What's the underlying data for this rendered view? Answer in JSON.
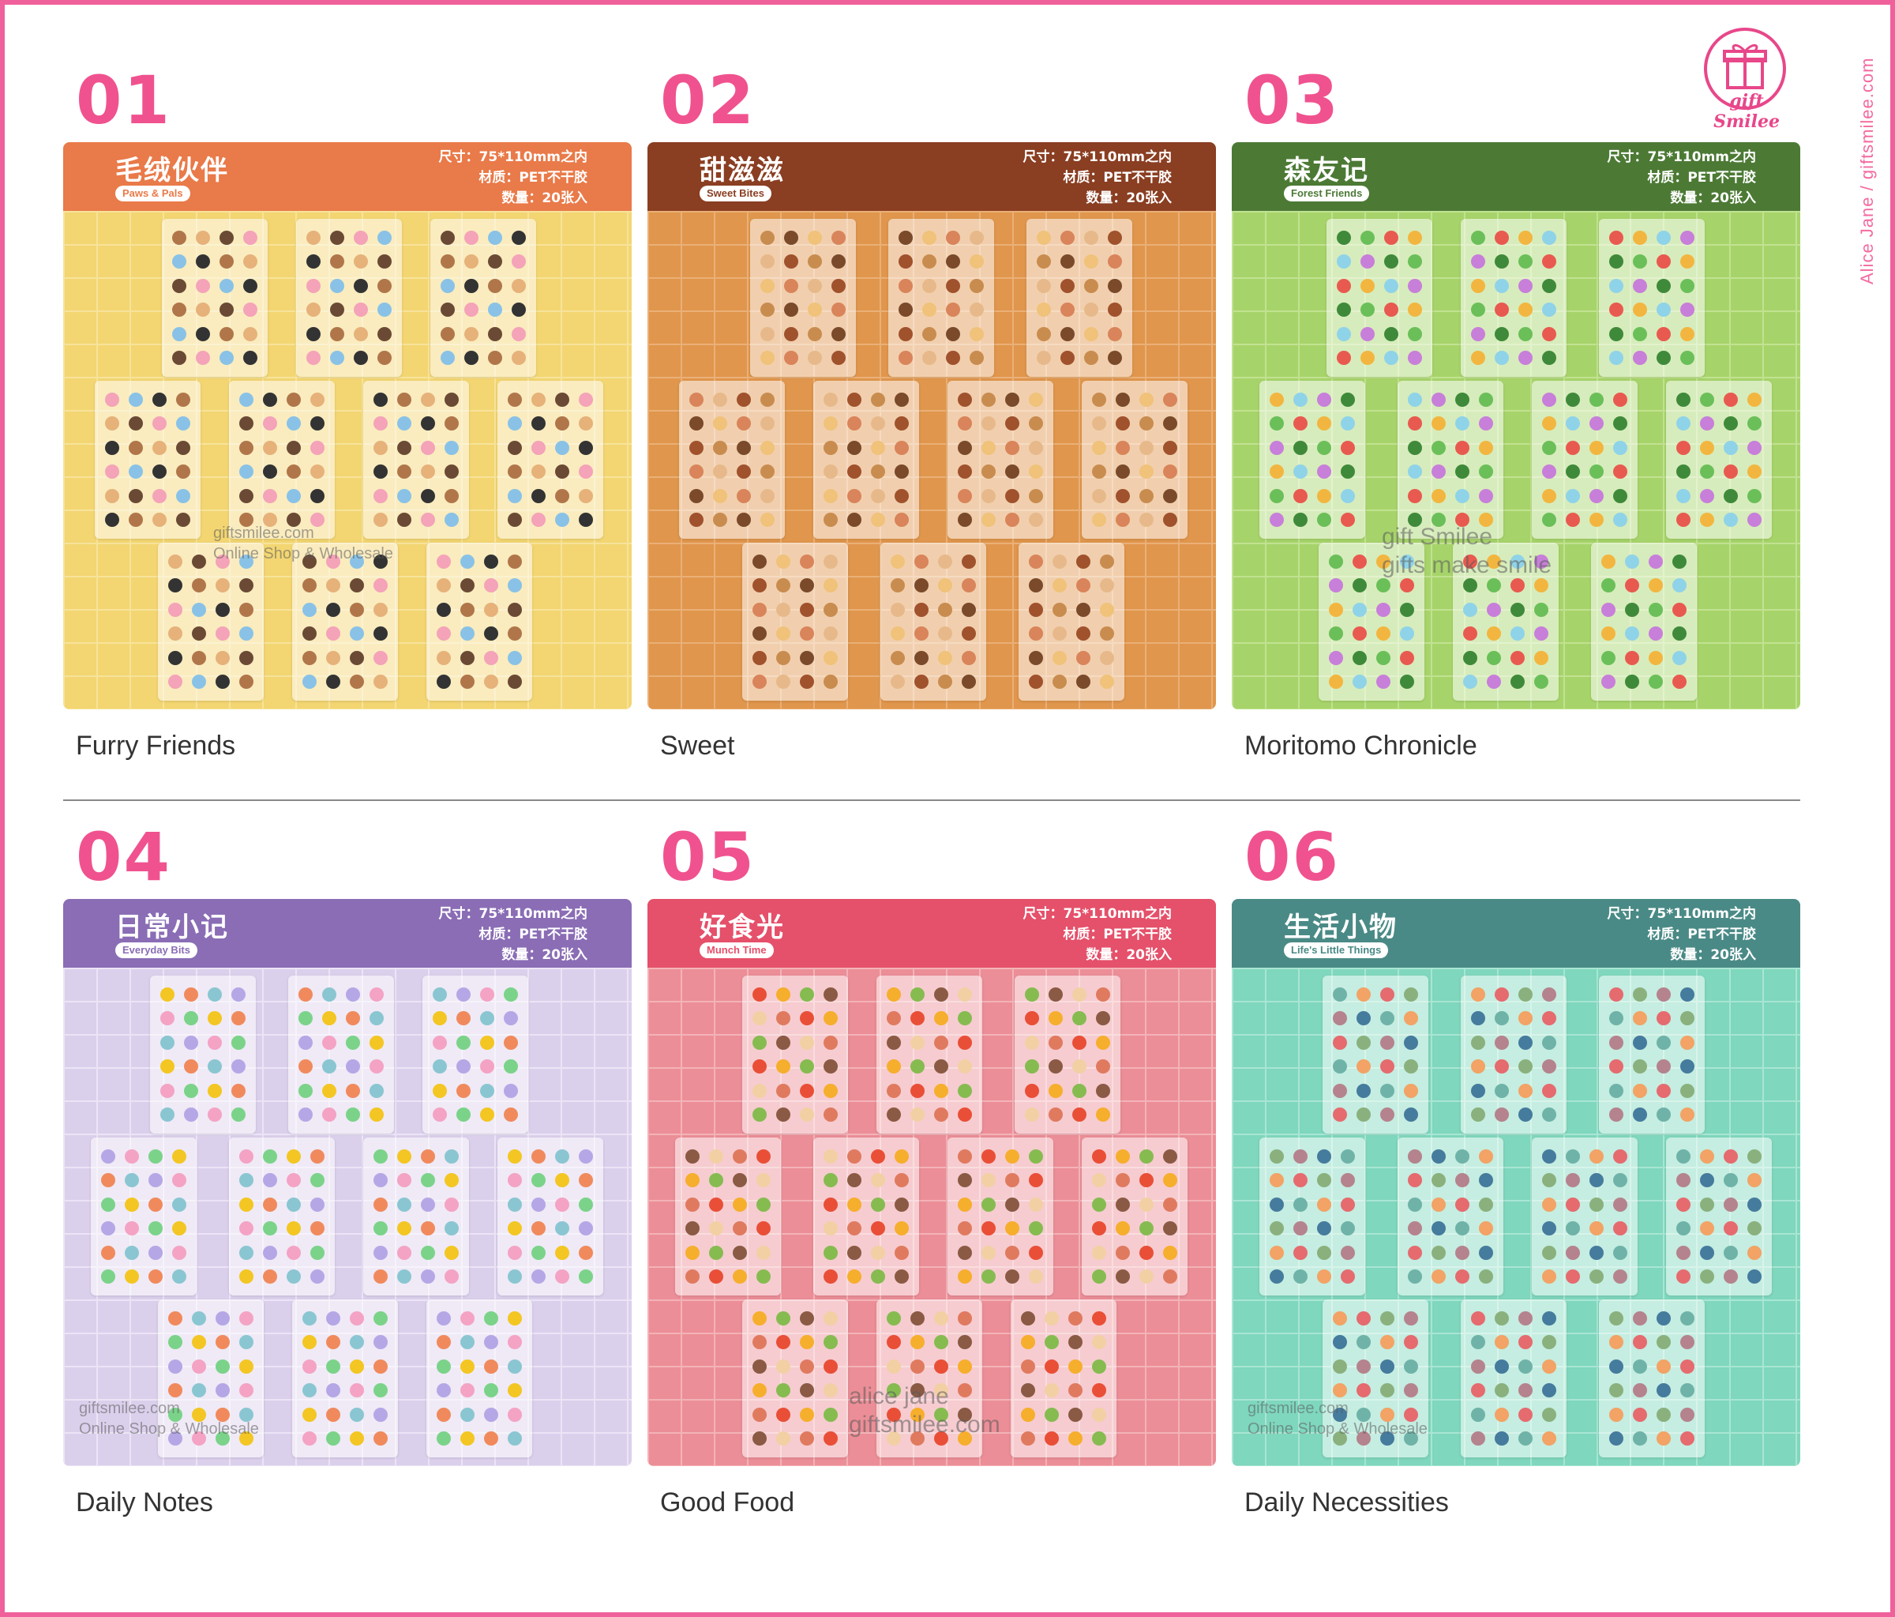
{
  "brand": {
    "side_text": "Alice Jane / giftsmilee.com",
    "logo_text": "gift Smilee",
    "logo_color": "#e8478a",
    "frame_color": "#f0609a"
  },
  "cards": [
    {
      "num": "01",
      "cn_title": "毛绒伙伴",
      "en_tag": "Paws & Pals",
      "size": "尺寸：75*110mm之内",
      "material": "材质：PET不干胶",
      "quantity": "数量：20张入",
      "caption": "Furry Friends",
      "banner_color": "#e97a49",
      "bg_color": "#f3d672",
      "grid_color": "#f7e39a",
      "watermark_line1": "giftsmilee.com",
      "watermark_line2": "Online Shop & Wholesale"
    },
    {
      "num": "02",
      "cn_title": "甜滋滋",
      "en_tag": "Sweet Bites",
      "size": "尺寸：75*110mm之内",
      "material": "材质：PET不干胶",
      "quantity": "数量：20张入",
      "caption": "Sweet",
      "banner_color": "#8a3e22",
      "bg_color": "#e0964c",
      "grid_color": "#eab077",
      "watermark_line1": "",
      "watermark_line2": ""
    },
    {
      "num": "03",
      "cn_title": "森友记",
      "en_tag": "Forest Friends",
      "size": "尺寸：75*110mm之内",
      "material": "材质：PET不干胶",
      "quantity": "数量：20张入",
      "caption": "Moritomo Chronicle",
      "banner_color": "#4c7a35",
      "bg_color": "#a7d46a",
      "grid_color": "#c1e291",
      "watermark_line1": "gift Smilee",
      "watermark_line2": "gifts make smile"
    },
    {
      "num": "04",
      "cn_title": "日常小记",
      "en_tag": "Everyday Bits",
      "size": "尺寸：75*110mm之内",
      "material": "材质：PET不干胶",
      "quantity": "数量：20张入",
      "caption": "Daily Notes",
      "banner_color": "#8a6db5",
      "bg_color": "#dbd0ec",
      "grid_color": "#ece4f6",
      "watermark_line1": "giftsmilee.com",
      "watermark_line2": "Online Shop & Wholesale"
    },
    {
      "num": "05",
      "cn_title": "好食光",
      "en_tag": "Munch Time",
      "size": "尺寸：75*110mm之内",
      "material": "材质：PET不干胶",
      "quantity": "数量：20张入",
      "caption": "Good Food",
      "banner_color": "#e5506a",
      "bg_color": "#ec8e97",
      "grid_color": "#f3b3b8",
      "watermark_line1": "alice jane",
      "watermark_line2": "giftsmilee.com"
    },
    {
      "num": "06",
      "cn_title": "生活小物",
      "en_tag": "Life's Little Things",
      "size": "尺寸：75*110mm之内",
      "material": "材质：PET不干胶",
      "quantity": "数量：20张入",
      "caption": "Daily Necessities",
      "banner_color": "#4a8a86",
      "bg_color": "#7fd7bd",
      "grid_color": "#a8e6d3",
      "watermark_line1": "giftsmilee.com",
      "watermark_line2": "Online Shop & Wholesale"
    }
  ]
}
